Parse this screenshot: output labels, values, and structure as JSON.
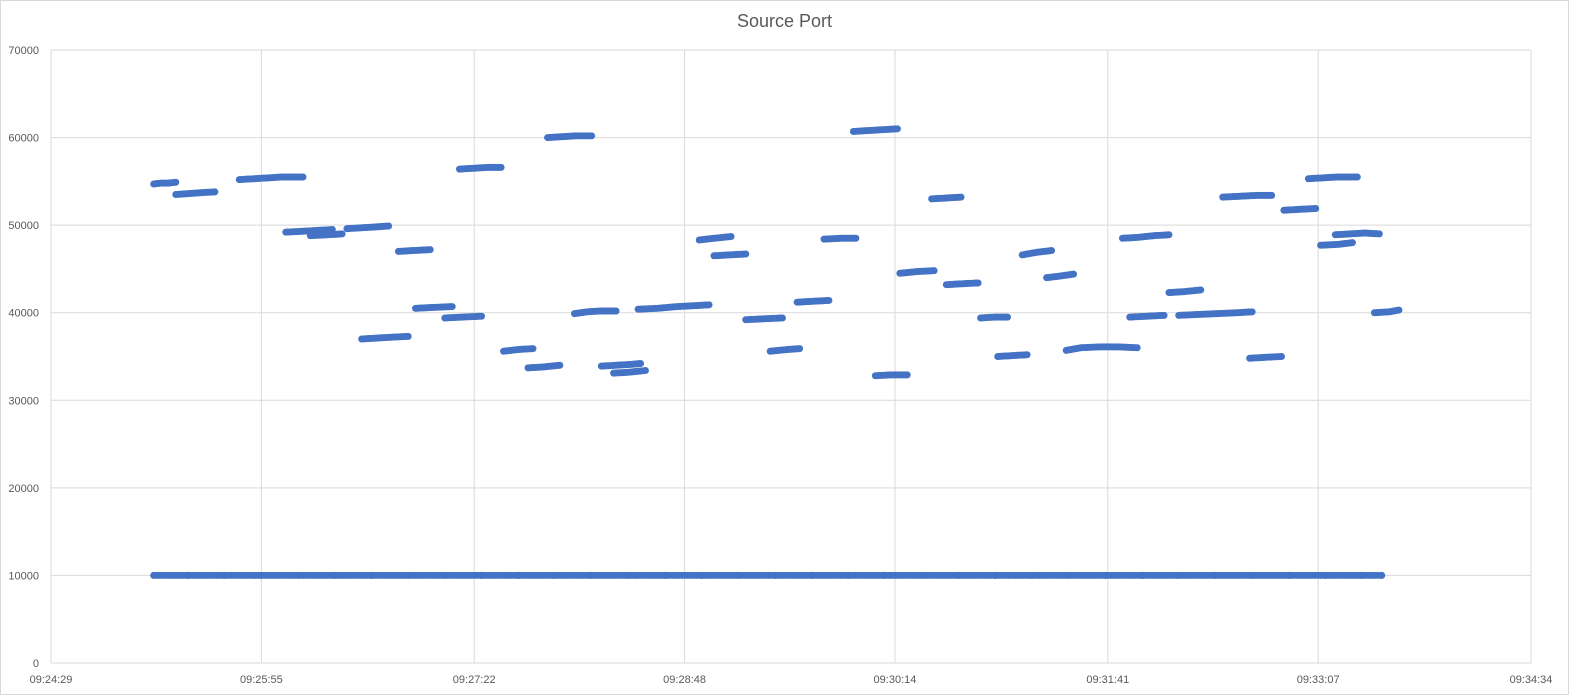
{
  "chart_data": {
    "type": "scatter",
    "title": "Source Port",
    "xlabel": "",
    "ylabel": "",
    "xlim": [
      "09:24:29",
      "09:34:34"
    ],
    "ylim": [
      0,
      70000
    ],
    "x_ticks": [
      "09:24:29",
      "09:25:55",
      "09:27:22",
      "09:28:48",
      "09:30:14",
      "09:31:41",
      "09:33:07",
      "09:34:34"
    ],
    "y_ticks": [
      0,
      10000,
      20000,
      30000,
      40000,
      50000,
      60000,
      70000
    ],
    "grid": true,
    "legend": "none",
    "marker_color": "#4472C4",
    "series": [
      {
        "points": [
          [
            "09:25:11",
            10000
          ],
          [
            "09:25:25",
            10000
          ],
          [
            "09:25:40",
            10000
          ],
          [
            "09:25:55",
            10000
          ],
          [
            "09:26:10",
            10000
          ],
          [
            "09:26:25",
            10000
          ],
          [
            "09:26:40",
            10000
          ],
          [
            "09:26:55",
            10000
          ],
          [
            "09:27:10",
            10000
          ],
          [
            "09:27:25",
            10000
          ],
          [
            "09:27:40",
            10000
          ],
          [
            "09:27:55",
            10000
          ],
          [
            "09:28:10",
            10000
          ],
          [
            "09:28:25",
            10000
          ],
          [
            "09:28:40",
            10000
          ],
          [
            "09:28:55",
            10000
          ],
          [
            "09:29:10",
            10000
          ],
          [
            "09:29:25",
            10000
          ],
          [
            "09:29:40",
            10000
          ],
          [
            "09:29:55",
            10000
          ],
          [
            "09:30:10",
            10000
          ],
          [
            "09:30:25",
            10000
          ],
          [
            "09:30:40",
            10000
          ],
          [
            "09:30:55",
            10000
          ],
          [
            "09:31:10",
            10000
          ],
          [
            "09:31:25",
            10000
          ],
          [
            "09:31:40",
            10000
          ],
          [
            "09:31:55",
            10000
          ],
          [
            "09:32:10",
            10000
          ],
          [
            "09:32:25",
            10000
          ],
          [
            "09:32:40",
            10000
          ],
          [
            "09:32:55",
            10000
          ],
          [
            "09:33:10",
            10000
          ],
          [
            "09:33:25",
            10000
          ],
          [
            "09:33:33",
            10000
          ],
          [
            "09:25:11",
            54700
          ],
          [
            "09:25:14",
            54800
          ],
          [
            "09:25:17",
            54800
          ],
          [
            "09:25:20",
            54900
          ],
          [
            "09:25:20",
            53500
          ],
          [
            "09:25:25",
            53600
          ],
          [
            "09:25:30",
            53700
          ],
          [
            "09:25:36",
            53800
          ],
          [
            "09:25:46",
            55200
          ],
          [
            "09:25:52",
            55300
          ],
          [
            "09:25:58",
            55400
          ],
          [
            "09:26:03",
            55500
          ],
          [
            "09:26:12",
            55500
          ],
          [
            "09:26:05",
            49200
          ],
          [
            "09:26:12",
            49300
          ],
          [
            "09:26:18",
            49400
          ],
          [
            "09:26:24",
            49500
          ],
          [
            "09:26:15",
            48800
          ],
          [
            "09:26:22",
            48900
          ],
          [
            "09:26:28",
            49000
          ],
          [
            "09:26:30",
            49600
          ],
          [
            "09:26:36",
            49700
          ],
          [
            "09:26:42",
            49800
          ],
          [
            "09:26:47",
            49900
          ],
          [
            "09:26:36",
            37000
          ],
          [
            "09:26:42",
            37100
          ],
          [
            "09:26:48",
            37200
          ],
          [
            "09:26:55",
            37300
          ],
          [
            "09:26:51",
            47000
          ],
          [
            "09:26:57",
            47100
          ],
          [
            "09:27:04",
            47200
          ],
          [
            "09:26:58",
            40500
          ],
          [
            "09:27:05",
            40600
          ],
          [
            "09:27:13",
            40700
          ],
          [
            "09:27:10",
            39400
          ],
          [
            "09:27:17",
            39500
          ],
          [
            "09:27:25",
            39600
          ],
          [
            "09:27:16",
            56400
          ],
          [
            "09:27:22",
            56500
          ],
          [
            "09:27:28",
            56600
          ],
          [
            "09:27:33",
            56600
          ],
          [
            "09:27:34",
            35600
          ],
          [
            "09:27:40",
            35800
          ],
          [
            "09:27:46",
            35900
          ],
          [
            "09:27:44",
            33700
          ],
          [
            "09:27:50",
            33800
          ],
          [
            "09:27:57",
            34000
          ],
          [
            "09:27:52",
            60000
          ],
          [
            "09:27:58",
            60100
          ],
          [
            "09:28:04",
            60200
          ],
          [
            "09:28:10",
            60200
          ],
          [
            "09:28:03",
            39900
          ],
          [
            "09:28:08",
            40100
          ],
          [
            "09:28:14",
            40200
          ],
          [
            "09:28:20",
            40200
          ],
          [
            "09:28:14",
            33900
          ],
          [
            "09:28:20",
            34000
          ],
          [
            "09:28:26",
            34100
          ],
          [
            "09:28:30",
            34200
          ],
          [
            "09:28:19",
            33100
          ],
          [
            "09:28:25",
            33200
          ],
          [
            "09:28:32",
            33400
          ],
          [
            "09:28:29",
            40400
          ],
          [
            "09:28:37",
            40500
          ],
          [
            "09:28:45",
            40700
          ],
          [
            "09:28:52",
            40800
          ],
          [
            "09:28:58",
            40900
          ],
          [
            "09:28:54",
            48300
          ],
          [
            "09:29:00",
            48500
          ],
          [
            "09:29:07",
            48700
          ],
          [
            "09:29:00",
            46500
          ],
          [
            "09:29:06",
            46600
          ],
          [
            "09:29:13",
            46700
          ],
          [
            "09:29:13",
            39200
          ],
          [
            "09:29:20",
            39300
          ],
          [
            "09:29:28",
            39400
          ],
          [
            "09:29:23",
            35600
          ],
          [
            "09:29:30",
            35800
          ],
          [
            "09:29:35",
            35900
          ],
          [
            "09:29:34",
            41200
          ],
          [
            "09:29:40",
            41300
          ],
          [
            "09:29:47",
            41400
          ],
          [
            "09:29:45",
            48400
          ],
          [
            "09:29:52",
            48500
          ],
          [
            "09:29:58",
            48500
          ],
          [
            "09:29:57",
            60700
          ],
          [
            "09:30:03",
            60800
          ],
          [
            "09:30:09",
            60900
          ],
          [
            "09:30:15",
            61000
          ],
          [
            "09:30:06",
            32800
          ],
          [
            "09:30:12",
            32900
          ],
          [
            "09:30:19",
            32900
          ],
          [
            "09:30:16",
            44500
          ],
          [
            "09:30:23",
            44700
          ],
          [
            "09:30:30",
            44800
          ],
          [
            "09:30:29",
            53000
          ],
          [
            "09:30:35",
            53100
          ],
          [
            "09:30:41",
            53200
          ],
          [
            "09:30:35",
            43200
          ],
          [
            "09:30:41",
            43300
          ],
          [
            "09:30:48",
            43400
          ],
          [
            "09:30:49",
            39400
          ],
          [
            "09:30:55",
            39500
          ],
          [
            "09:31:00",
            39500
          ],
          [
            "09:30:56",
            35000
          ],
          [
            "09:31:02",
            35100
          ],
          [
            "09:31:08",
            35200
          ],
          [
            "09:31:06",
            46600
          ],
          [
            "09:31:12",
            46900
          ],
          [
            "09:31:18",
            47100
          ],
          [
            "09:31:16",
            44000
          ],
          [
            "09:31:22",
            44200
          ],
          [
            "09:31:27",
            44400
          ],
          [
            "09:31:24",
            35700
          ],
          [
            "09:31:30",
            36000
          ],
          [
            "09:31:38",
            36100
          ],
          [
            "09:31:45",
            36100
          ],
          [
            "09:31:53",
            36000
          ],
          [
            "09:31:47",
            48500
          ],
          [
            "09:31:53",
            48600
          ],
          [
            "09:32:00",
            48800
          ],
          [
            "09:32:06",
            48900
          ],
          [
            "09:31:50",
            39500
          ],
          [
            "09:31:57",
            39600
          ],
          [
            "09:32:04",
            39700
          ],
          [
            "09:32:06",
            42300
          ],
          [
            "09:32:12",
            42400
          ],
          [
            "09:32:19",
            42600
          ],
          [
            "09:32:10",
            39700
          ],
          [
            "09:32:18",
            39800
          ],
          [
            "09:32:26",
            39900
          ],
          [
            "09:32:34",
            40000
          ],
          [
            "09:32:40",
            40100
          ],
          [
            "09:32:28",
            53200
          ],
          [
            "09:32:35",
            53300
          ],
          [
            "09:32:42",
            53400
          ],
          [
            "09:32:48",
            53400
          ],
          [
            "09:32:39",
            34800
          ],
          [
            "09:32:45",
            34900
          ],
          [
            "09:32:52",
            35000
          ],
          [
            "09:32:53",
            51700
          ],
          [
            "09:32:59",
            51800
          ],
          [
            "09:33:06",
            51900
          ],
          [
            "09:33:03",
            55300
          ],
          [
            "09:33:09",
            55400
          ],
          [
            "09:33:15",
            55500
          ],
          [
            "09:33:23",
            55500
          ],
          [
            "09:33:08",
            47700
          ],
          [
            "09:33:15",
            47800
          ],
          [
            "09:33:21",
            48000
          ],
          [
            "09:33:14",
            48900
          ],
          [
            "09:33:20",
            49000
          ],
          [
            "09:33:26",
            49100
          ],
          [
            "09:33:32",
            49000
          ],
          [
            "09:33:30",
            40000
          ],
          [
            "09:33:36",
            40100
          ],
          [
            "09:33:40",
            40300
          ]
        ]
      }
    ]
  }
}
